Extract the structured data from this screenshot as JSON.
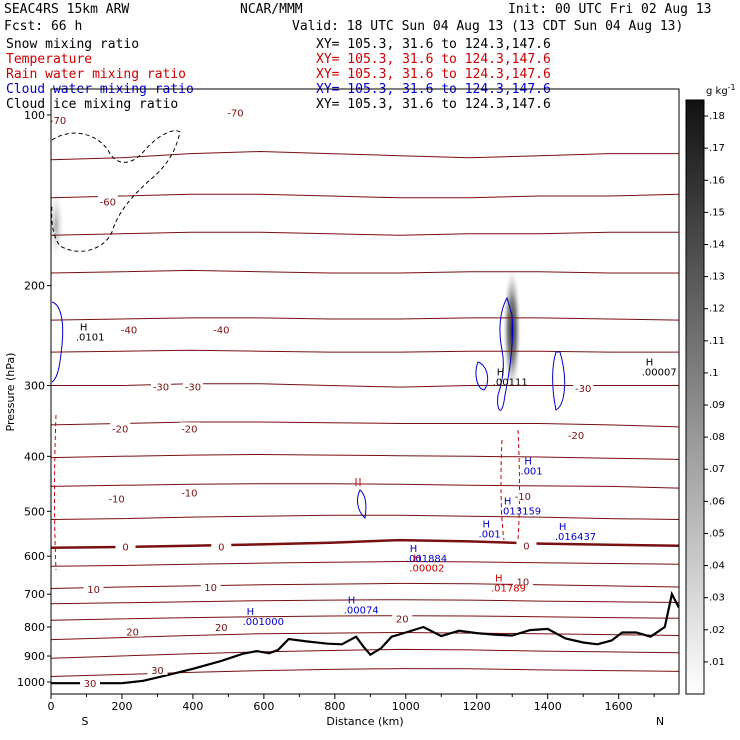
{
  "header": {
    "model": "SEAC4RS 15km ARW",
    "org": "NCAR/MMM",
    "init": "Init: 00 UTC Fri 02 Aug 13",
    "fcst": "Fcst:   66 h",
    "valid": "Valid: 18 UTC Sun 04 Aug 13 (13 CDT Sun 04 Aug 13)"
  },
  "fields": [
    {
      "name": "Snow mixing ratio",
      "xy": "",
      "color": "#000000"
    },
    {
      "name": "Temperature",
      "xy": "XY= 105.3, 31.6 to 124.3,147.6",
      "color": "#cc0000"
    },
    {
      "name": "Rain water mixing ratio",
      "xy": "XY= 105.3, 31.6 to 124.3,147.6",
      "color": "#cc0000"
    },
    {
      "name": "Cloud water mixing ratio",
      "xy": "XY= 105.3, 31.6 to 124.3,147.6",
      "color": "#0000cc"
    },
    {
      "name": "Cloud ice mixing ratio",
      "xy": "XY= 105.3, 31.6 to 124.3,147.6",
      "color": "#000000"
    }
  ],
  "first_xy": "XY= 105.3, 31.6 to 124.3,147.6",
  "chart_data": {
    "type": "heatmap",
    "xlabel": "Distance (km)",
    "ylabel": "Pressure (hPa)",
    "xlim": [
      0,
      1770
    ],
    "ylim": [
      1050,
      90
    ],
    "y_scale": "log",
    "x_ticks": [
      0,
      200,
      400,
      600,
      800,
      1000,
      1200,
      1400,
      1600
    ],
    "y_ticks": [
      100,
      200,
      300,
      400,
      500,
      600,
      700,
      800,
      900,
      1000
    ],
    "x_end_labels": {
      "left": "S",
      "right": "N"
    },
    "colorbar": {
      "unit": "g kg",
      "unit_exp": "-1",
      "ticks": [
        ".18",
        ".17",
        ".16",
        ".15",
        ".14",
        ".13",
        ".12",
        ".11",
        ".1",
        ".09",
        ".08",
        ".07",
        ".06",
        ".05",
        ".04",
        ".03",
        ".02",
        ".01"
      ]
    },
    "temperature_levels_c": [
      -70,
      -60,
      -50,
      -40,
      -30,
      -20,
      -10,
      0,
      10,
      20,
      30
    ],
    "temperature_contours": [
      {
        "level": -70,
        "p": [
          120,
          119,
          117,
          116,
          117,
          118,
          119,
          118,
          117,
          117
        ]
      },
      {
        "level": -60,
        "p": [
          140,
          139,
          138,
          138,
          139,
          140,
          140,
          139,
          139,
          138
        ]
      },
      {
        "level": -60,
        "p": [
          163,
          162,
          161,
          161,
          162,
          163,
          162,
          162,
          161,
          161
        ]
      },
      {
        "level": -50,
        "p": [
          190,
          189,
          188,
          189,
          190,
          190,
          189,
          189,
          190,
          190
        ]
      },
      {
        "level": -40,
        "p": [
          230,
          229,
          228,
          228,
          229,
          229,
          228,
          228,
          229,
          230
        ]
      },
      {
        "level": -40,
        "p": [
          262,
          261,
          260,
          261,
          262,
          262,
          261,
          261,
          262,
          262
        ]
      },
      {
        "level": -30,
        "p": [
          300,
          300,
          298,
          298,
          300,
          302,
          300,
          300,
          300,
          300
        ]
      },
      {
        "level": -20,
        "p": [
          352,
          350,
          348,
          348,
          349,
          350,
          350,
          350,
          352,
          355
        ]
      },
      {
        "level": -20,
        "p": [
          402,
          400,
          398,
          397,
          398,
          399,
          400,
          401,
          403,
          405
        ]
      },
      {
        "level": -10,
        "p": [
          452,
          450,
          448,
          447,
          447,
          448,
          450,
          451,
          452,
          455
        ]
      },
      {
        "level": -10,
        "p": [
          517,
          515,
          512,
          510,
          508,
          508,
          510,
          512,
          515,
          517
        ]
      },
      {
        "level": 0,
        "p": [
          580,
          578,
          575,
          572,
          568,
          562,
          565,
          570,
          573,
          575
        ]
      },
      {
        "level": 10,
        "p": [
          625,
          623,
          620,
          617,
          615,
          613,
          614,
          616,
          618,
          620
        ]
      },
      {
        "level": 10,
        "p": [
          684,
          680,
          677,
          674,
          672,
          670,
          671,
          674,
          677,
          680
        ]
      },
      {
        "level": 10,
        "p": [
          728,
          725,
          722,
          719,
          717,
          716,
          717,
          720,
          722,
          724
        ]
      },
      {
        "level": 20,
        "p": [
          778,
          774,
          770,
          767,
          765,
          764,
          765,
          767,
          770,
          772
        ]
      },
      {
        "level": 20,
        "p": [
          842,
          835,
          828,
          822,
          820,
          818,
          820,
          822,
          825,
          828
        ]
      },
      {
        "level": 30,
        "p": [
          908,
          900,
          892,
          885,
          880,
          876,
          878,
          882,
          885,
          888
        ]
      },
      {
        "level": 30,
        "p": [
          978,
          970,
          962,
          955,
          950,
          947,
          948,
          952,
          955,
          958
        ]
      }
    ],
    "contour_labels": [
      {
        "text": "-70",
        "x": 20,
        "p": 102
      },
      {
        "text": "-70",
        "x": 520,
        "p": 99
      },
      {
        "text": "-60",
        "x": 160,
        "p": 142
      },
      {
        "text": "-40",
        "x": 220,
        "p": 239
      },
      {
        "text": "-40",
        "x": 480,
        "p": 239
      },
      {
        "text": "-30",
        "x": 310,
        "p": 301
      },
      {
        "text": "-30",
        "x": 400,
        "p": 301
      },
      {
        "text": "-30",
        "x": 1500,
        "p": 303
      },
      {
        "text": "-20",
        "x": 195,
        "p": 357
      },
      {
        "text": "-20",
        "x": 390,
        "p": 357
      },
      {
        "text": "-20",
        "x": 1480,
        "p": 367
      },
      {
        "text": "-10",
        "x": 185,
        "p": 475
      },
      {
        "text": "-10",
        "x": 390,
        "p": 463
      },
      {
        "text": "-10",
        "x": 1330,
        "p": 470
      },
      {
        "text": "0",
        "x": 210,
        "p": 577
      },
      {
        "text": "0",
        "x": 480,
        "p": 577
      },
      {
        "text": "0",
        "x": 1340,
        "p": 575
      },
      {
        "text": "10",
        "x": 120,
        "p": 686
      },
      {
        "text": "10",
        "x": 450,
        "p": 680
      },
      {
        "text": "10",
        "x": 1330,
        "p": 665
      },
      {
        "text": "20",
        "x": 230,
        "p": 815
      },
      {
        "text": "20",
        "x": 480,
        "p": 800
      },
      {
        "text": "20",
        "x": 990,
        "p": 772
      },
      {
        "text": "30",
        "x": 300,
        "p": 952
      },
      {
        "text": "30",
        "x": 110,
        "p": 1004
      }
    ],
    "maxima_labels": [
      {
        "text": ".0101",
        "x": 70,
        "p": 250,
        "color": "#000000"
      },
      {
        "text": ".00111",
        "x": 1245,
        "p": 300,
        "color": "#000000"
      },
      {
        "text": ".00007",
        "x": 1665,
        "p": 288,
        "color": "#000000"
      },
      {
        "text": ".001",
        "x": 1323,
        "p": 431,
        "color": "#0000cc"
      },
      {
        "text": ".013159",
        "x": 1265,
        "p": 507,
        "color": "#0000cc"
      },
      {
        "text": ".001",
        "x": 1205,
        "p": 556,
        "color": "#0000cc"
      },
      {
        "text": ".016437",
        "x": 1420,
        "p": 562,
        "color": "#0000cc"
      },
      {
        "text": ".001884",
        "x": 1000,
        "p": 614,
        "color": "#0000cc"
      },
      {
        "text": ".00002",
        "x": 1010,
        "p": 639,
        "color": "#cc0000"
      },
      {
        "text": ".01789",
        "x": 1240,
        "p": 692,
        "color": "#cc0000"
      },
      {
        "text": ".00074",
        "x": 825,
        "p": 757,
        "color": "#0000cc"
      },
      {
        "text": ".001000",
        "x": 540,
        "p": 793,
        "color": "#0000cc"
      }
    ],
    "terrain": [
      {
        "x": 0,
        "p": 1005
      },
      {
        "x": 200,
        "p": 1005
      },
      {
        "x": 260,
        "p": 995
      },
      {
        "x": 320,
        "p": 975
      },
      {
        "x": 400,
        "p": 948
      },
      {
        "x": 480,
        "p": 918
      },
      {
        "x": 540,
        "p": 892
      },
      {
        "x": 580,
        "p": 882
      },
      {
        "x": 615,
        "p": 890
      },
      {
        "x": 640,
        "p": 878
      },
      {
        "x": 670,
        "p": 840
      },
      {
        "x": 720,
        "p": 848
      },
      {
        "x": 780,
        "p": 856
      },
      {
        "x": 820,
        "p": 858
      },
      {
        "x": 860,
        "p": 832
      },
      {
        "x": 880,
        "p": 865
      },
      {
        "x": 900,
        "p": 895
      },
      {
        "x": 930,
        "p": 872
      },
      {
        "x": 960,
        "p": 832
      },
      {
        "x": 1000,
        "p": 818
      },
      {
        "x": 1050,
        "p": 800
      },
      {
        "x": 1100,
        "p": 830
      },
      {
        "x": 1150,
        "p": 812
      },
      {
        "x": 1200,
        "p": 820
      },
      {
        "x": 1250,
        "p": 825
      },
      {
        "x": 1300,
        "p": 828
      },
      {
        "x": 1350,
        "p": 810
      },
      {
        "x": 1400,
        "p": 806
      },
      {
        "x": 1450,
        "p": 838
      },
      {
        "x": 1500,
        "p": 852
      },
      {
        "x": 1540,
        "p": 858
      },
      {
        "x": 1580,
        "p": 845
      },
      {
        "x": 1610,
        "p": 818
      },
      {
        "x": 1650,
        "p": 818
      },
      {
        "x": 1690,
        "p": 832
      },
      {
        "x": 1730,
        "p": 800
      },
      {
        "x": 1750,
        "p": 700
      },
      {
        "x": 1770,
        "p": 740
      }
    ]
  }
}
